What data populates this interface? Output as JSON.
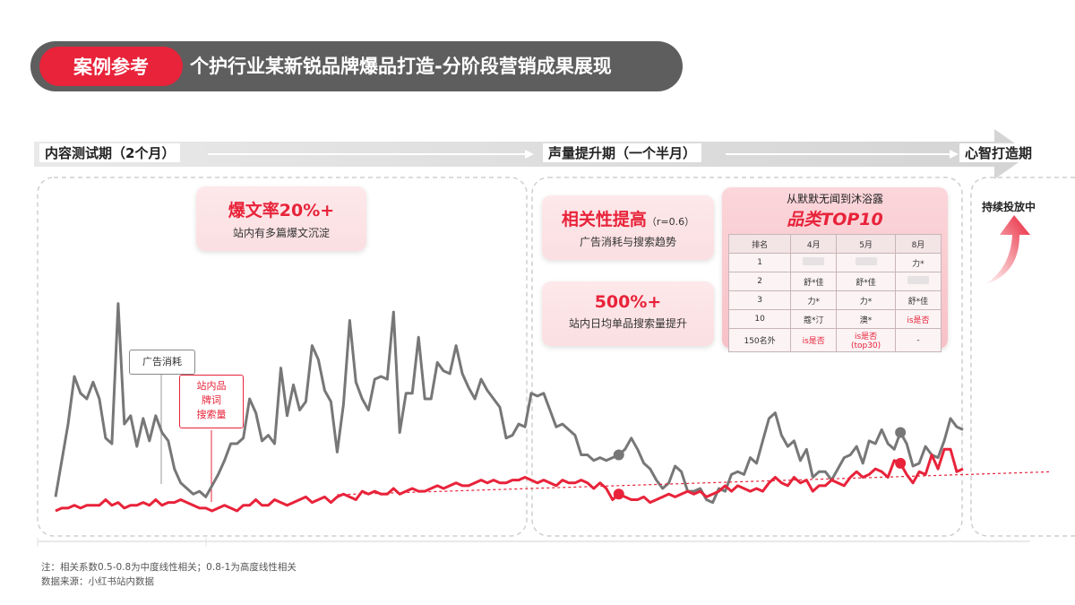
{
  "header": {
    "badge": "案例参考",
    "title": "个护行业某新锐品牌爆品打造-分阶段营销成果展现"
  },
  "phases": [
    {
      "label": "内容测试期（2个月）"
    },
    {
      "label": "声量提升期（一个半月）"
    },
    {
      "label": "心智打造期"
    }
  ],
  "cards": {
    "viral": {
      "big": "爆文率20%+",
      "sub": "站内有多篇爆文沉淀"
    },
    "correlation": {
      "big": "相关性提高",
      "r": "（r=0.6）",
      "sub": "广告消耗与搜索趋势"
    },
    "search_growth": {
      "big": "500%+",
      "sub": "站内日均单品搜索量提升"
    },
    "ongoing": {
      "label": "持续投放中"
    }
  },
  "top10": {
    "title": "从默默无闻到沐浴露",
    "subtitle": "品类TOP10",
    "headers": [
      "排名",
      "4月",
      "5月",
      "8月"
    ],
    "rows": [
      [
        "1",
        "",
        "",
        "力*"
      ],
      [
        "2",
        "舒*佳",
        "舒*佳",
        ""
      ],
      [
        "3",
        "力*",
        "力*",
        "舒*佳"
      ],
      [
        "10",
        "蔻*汀",
        "澳*",
        "is是否"
      ],
      [
        "150名外",
        "is是否",
        "is是否\n(top30)",
        "-"
      ]
    ]
  },
  "callouts": {
    "ad_spend": "广告消耗",
    "brand_search": "站内品\n牌词\n搜索量"
  },
  "notes": {
    "line1": "注：相关系数0.5-0.8为中度线性相关；0.8-1为高度线性相关",
    "line2": "数据来源：小红书站内数据"
  },
  "colors": {
    "accent": "#e8233a",
    "grey_series": "#777777",
    "title_bg": "#5e5e5e"
  },
  "chart_data": {
    "type": "line",
    "title": "",
    "xlabel": "",
    "ylabel": "",
    "series": [
      {
        "name": "广告消耗",
        "color": "#777777",
        "values": [
          5,
          18,
          31,
          48,
          42,
          40,
          46,
          40,
          26,
          24,
          74,
          31,
          34,
          23,
          33,
          25,
          34,
          28,
          25,
          15,
          10,
          8,
          6,
          7,
          5,
          9,
          13,
          18,
          24,
          24,
          26,
          40,
          35,
          25,
          27,
          24,
          51,
          34,
          45,
          36,
          39,
          59,
          54,
          43,
          39,
          21,
          38,
          68,
          46,
          40,
          36,
          47,
          48,
          47,
          71,
          28,
          42,
          42,
          62,
          40,
          40,
          53,
          50,
          49,
          59,
          49,
          44,
          40,
          47,
          43,
          40,
          37,
          26,
          27,
          31,
          30,
          42,
          41,
          42,
          36,
          30,
          31,
          29,
          27,
          20,
          20,
          18,
          19,
          18,
          19,
          20,
          22,
          26,
          22,
          17,
          15,
          11,
          8,
          10,
          16,
          14,
          7,
          7,
          8,
          4,
          3,
          8,
          7,
          13,
          14,
          13,
          19,
          17,
          25,
          33,
          35,
          27,
          23,
          25,
          18,
          22,
          12,
          14,
          14,
          11,
          15,
          19,
          20,
          23,
          17,
          25,
          24,
          29,
          24,
          22,
          28,
          24,
          16,
          17,
          23,
          20,
          19,
          25,
          33,
          30,
          29
        ]
      },
      {
        "name": "站内品牌词搜索量",
        "color": "#e8233a",
        "values": [
          0,
          1,
          1,
          2,
          1,
          2,
          2,
          2,
          4,
          2,
          3,
          1,
          2,
          2,
          3,
          2,
          4,
          2,
          3,
          3,
          4,
          3,
          2,
          1,
          1,
          0,
          1,
          2,
          1,
          0,
          2,
          2,
          4,
          2,
          2,
          4,
          3,
          2,
          3,
          4,
          5,
          3,
          4,
          5,
          3,
          5,
          6,
          5,
          4,
          7,
          6,
          7,
          6,
          6,
          8,
          6,
          7,
          8,
          7,
          7,
          8,
          9,
          8,
          9,
          10,
          9,
          9,
          10,
          11,
          10,
          11,
          10,
          10,
          11,
          11,
          12,
          11,
          10,
          11,
          10,
          9,
          11,
          10,
          10,
          11,
          10,
          8,
          10,
          8,
          4,
          6,
          5,
          4,
          4,
          5,
          3,
          4,
          5,
          6,
          5,
          6,
          7,
          6,
          7,
          5,
          6,
          7,
          9,
          7,
          9,
          8,
          7,
          8,
          7,
          10,
          12,
          10,
          9,
          12,
          10,
          11,
          7,
          9,
          9,
          11,
          10,
          9,
          12,
          14,
          12,
          13,
          15,
          14,
          12,
          18,
          17,
          13,
          10,
          14,
          13,
          20,
          15,
          22,
          22,
          14,
          15
        ]
      }
    ],
    "trendline": {
      "series": "站内品牌词搜索量",
      "style": "dashed"
    },
    "phase_breaks_index": [
      90,
      135
    ],
    "ylim": [
      0,
      80
    ],
    "grid": false
  }
}
